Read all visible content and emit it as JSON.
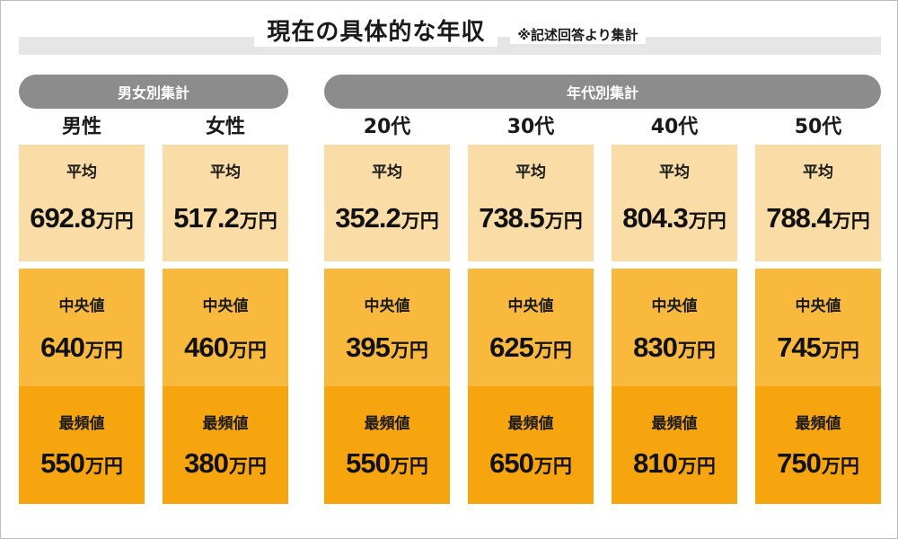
{
  "title": "現在の具体的な年収",
  "note": "※記述回答より集計",
  "groups": {
    "gender": "男女別集計",
    "age": "年代別集計"
  },
  "labels": {
    "average": "平均",
    "median": "中央値",
    "mode": "最頻値",
    "unit": "万円"
  },
  "columns": [
    {
      "name": "男性",
      "average": "692.8",
      "median": "640",
      "mode": "550"
    },
    {
      "name": "女性",
      "average": "517.2",
      "median": "460",
      "mode": "380"
    },
    {
      "name": "20代",
      "average": "352.2",
      "median": "395",
      "mode": "550"
    },
    {
      "name": "30代",
      "average": "738.5",
      "median": "625",
      "mode": "650"
    },
    {
      "name": "40代",
      "average": "804.3",
      "median": "830",
      "mode": "810"
    },
    {
      "name": "50代",
      "average": "788.4",
      "median": "745",
      "mode": "750"
    }
  ],
  "colors": {
    "average_bg": "#f9dca6",
    "median_bg": "#f8b93c",
    "mode_bg": "#f6a50f",
    "pill_bg": "#8c8c8c",
    "title_band": "#e6e6e6"
  }
}
